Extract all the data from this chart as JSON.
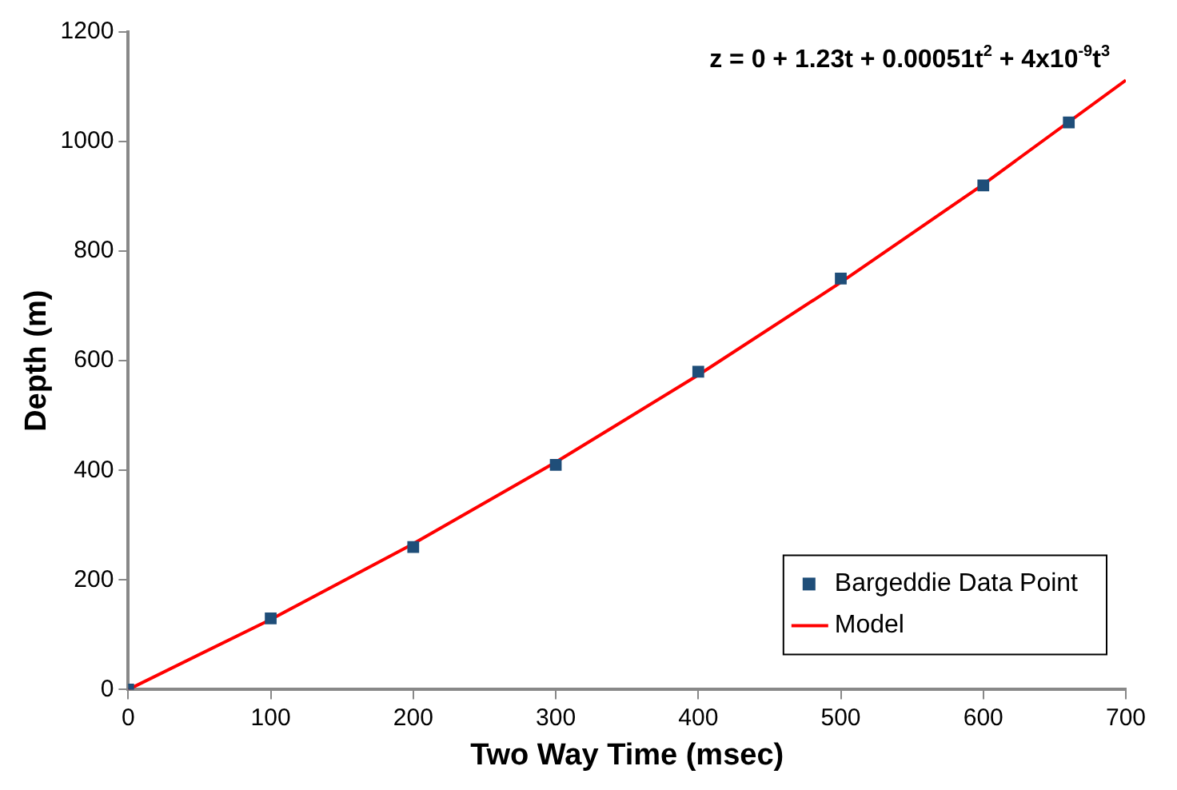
{
  "chart_data": {
    "type": "scatter",
    "xlabel": "Two Way Time (msec)",
    "ylabel": "Depth (m)",
    "annotations": [
      "z = 0 + 1.23t + 0.00051t$^{2}$ + 4x10$^{-9}$t$^{3}$"
    ],
    "xlim": [
      0,
      700
    ],
    "xticks": [
      0,
      100,
      200,
      300,
      400,
      500,
      600,
      700
    ],
    "ylim": [
      0,
      1200
    ],
    "yticks": [
      0,
      200,
      400,
      600,
      800,
      1000,
      1200
    ],
    "grid": false,
    "legend": "bottom right",
    "series": [
      {
        "name": "Bargeddie Data Point",
        "color": "#1f4e79",
        "marker": "square",
        "x": [
          0,
          100,
          200,
          300,
          400,
          500,
          600,
          660
        ],
        "values": [
          0,
          130,
          260,
          410,
          580,
          750,
          920,
          1035
        ]
      },
      {
        "name": "Model",
        "type": "line",
        "color": "#ff0000",
        "marker": "none",
        "line_style": "solid",
        "x": [
          0,
          100,
          200,
          300,
          400,
          500,
          600,
          700
        ],
        "values": [
          0,
          128,
          266,
          415,
          574,
          743,
          922,
          1112
        ]
      }
    ]
  }
}
